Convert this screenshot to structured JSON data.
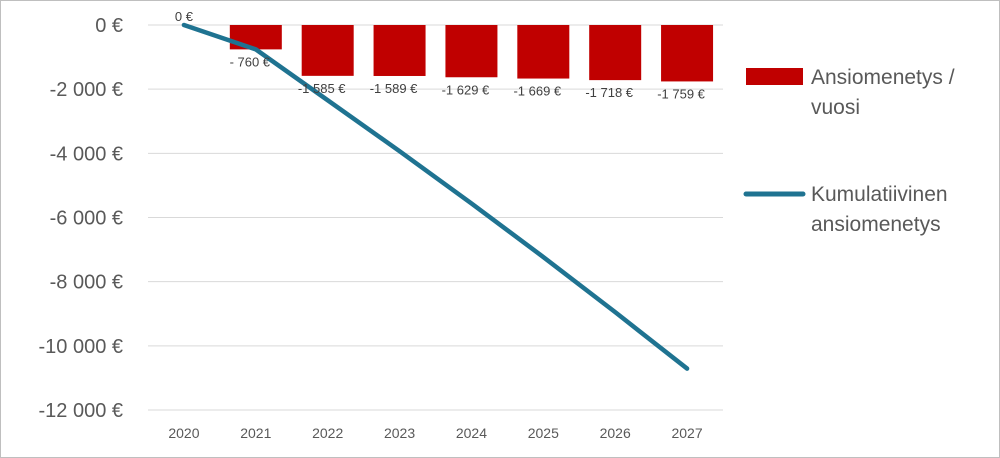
{
  "chart_data": {
    "type": "bar",
    "categories": [
      "2020",
      "2021",
      "2022",
      "2023",
      "2024",
      "2025",
      "2026",
      "2027"
    ],
    "series": [
      {
        "name": "Ansiomenetys / vuosi",
        "kind": "bar",
        "color": "#c00000",
        "values": [
          0,
          -760,
          -1585,
          -1589,
          -1629,
          -1669,
          -1718,
          -1759
        ],
        "labels": [
          "0 €",
          "- 760 €",
          "-1 585 €",
          "-1 589 €",
          "-1 629 €",
          "-1 669 €",
          "-1 718 €",
          "-1 759 €"
        ]
      },
      {
        "name": "Kumulatiivinen ansiomenetys",
        "kind": "line",
        "color": "#1f7391",
        "values": [
          0,
          -760,
          -2345,
          -3934,
          -5563,
          -7232,
          -8950,
          -10709
        ]
      }
    ],
    "yticks": [
      0,
      -2000,
      -4000,
      -6000,
      -8000,
      -10000,
      -12000
    ],
    "ytick_labels": [
      "0 €",
      "-2 000 €",
      "-4 000 €",
      "-6 000 €",
      "-8 000 €",
      "-10 000 €",
      "-12 000 €"
    ],
    "ylim": [
      -12000,
      0
    ],
    "grid": true,
    "legend_position": "right",
    "legend": [
      {
        "lines": [
          "Ansiomenetys /",
          "vuosi"
        ]
      },
      {
        "lines": [
          "Kumulatiivinen",
          "ansiomenetys"
        ]
      }
    ]
  }
}
